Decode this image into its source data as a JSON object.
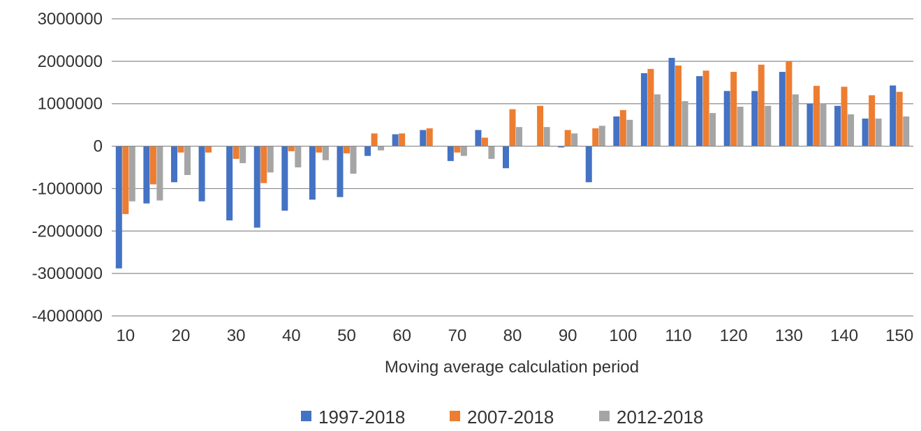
{
  "chart_data": {
    "type": "bar",
    "title": "",
    "xlabel": "Moving average calculation period",
    "ylabel": "",
    "ylim": [
      -4000000,
      3000000
    ],
    "yticks": [
      3000000,
      2000000,
      1000000,
      0,
      -1000000,
      -2000000,
      -3000000,
      -4000000
    ],
    "ytick_labels": [
      "3000000",
      "2000000",
      "1000000",
      "0",
      "-1000000",
      "-2000000",
      "-3000000",
      "-4000000"
    ],
    "xtick_labels": [
      "10",
      "20",
      "30",
      "40",
      "50",
      "60",
      "70",
      "80",
      "90",
      "100",
      "110",
      "120",
      "130",
      "140",
      "150"
    ],
    "grid": true,
    "legend_position": "bottom",
    "categories": [
      10,
      15,
      20,
      25,
      30,
      35,
      40,
      45,
      50,
      55,
      60,
      65,
      70,
      75,
      80,
      85,
      90,
      95,
      100,
      105,
      110,
      115,
      120,
      125,
      130,
      135,
      140,
      145,
      150
    ],
    "series": [
      {
        "name": "1997-2018",
        "color": "#4472c4",
        "values": [
          -2880000,
          -1350000,
          -850000,
          -1300000,
          -1750000,
          -1920000,
          -1520000,
          -1260000,
          -1200000,
          -230000,
          280000,
          380000,
          -350000,
          380000,
          -520000,
          0,
          -30000,
          -850000,
          700000,
          1720000,
          2080000,
          1650000,
          1300000,
          1300000,
          1750000,
          1000000,
          950000,
          650000,
          1430000
        ]
      },
      {
        "name": "2007-2018",
        "color": "#ed7d31",
        "values": [
          -1600000,
          -900000,
          -150000,
          -150000,
          -300000,
          -870000,
          -120000,
          -150000,
          -170000,
          300000,
          300000,
          420000,
          -150000,
          200000,
          870000,
          950000,
          380000,
          420000,
          850000,
          1820000,
          1900000,
          1780000,
          1750000,
          1920000,
          2000000,
          1420000,
          1400000,
          1200000,
          1280000
        ]
      },
      {
        "name": "2012-2018",
        "color": "#a5a5a5",
        "values": [
          -1300000,
          -1280000,
          -680000,
          0,
          -400000,
          -620000,
          -500000,
          -330000,
          -650000,
          -100000,
          0,
          0,
          -230000,
          -300000,
          450000,
          450000,
          300000,
          480000,
          620000,
          1220000,
          1060000,
          780000,
          930000,
          950000,
          1220000,
          1000000,
          750000,
          650000,
          700000
        ]
      }
    ]
  }
}
